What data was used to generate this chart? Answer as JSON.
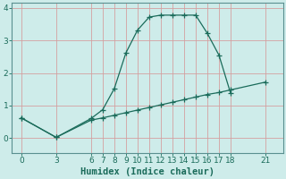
{
  "xlabel": "Humidex (Indice chaleur)",
  "bg_color": "#ceecea",
  "line_color": "#1a6b5a",
  "grid_color": "#d4a0a0",
  "xticks": [
    0,
    3,
    6,
    7,
    8,
    9,
    10,
    11,
    12,
    13,
    14,
    15,
    16,
    17,
    18,
    21
  ],
  "yticks": [
    0,
    1,
    2,
    3,
    4
  ],
  "ylim": [
    -0.45,
    4.15
  ],
  "xlim": [
    -0.8,
    22.5
  ],
  "curve_x": [
    0,
    3,
    6,
    7,
    8,
    9,
    10,
    11,
    12,
    13,
    14,
    15,
    16,
    17,
    18
  ],
  "curve_y": [
    0.62,
    0.02,
    0.6,
    0.87,
    1.52,
    2.62,
    3.32,
    3.72,
    3.78,
    3.78,
    3.78,
    3.78,
    3.22,
    2.55,
    1.38
  ],
  "linear_x": [
    0,
    3,
    6,
    7,
    8,
    9,
    10,
    11,
    12,
    13,
    14,
    15,
    16,
    17,
    18,
    21
  ],
  "linear_y": [
    0.62,
    0.02,
    0.55,
    0.62,
    0.7,
    0.78,
    0.86,
    0.94,
    1.02,
    1.1,
    1.18,
    1.26,
    1.34,
    1.4,
    1.48,
    1.72
  ],
  "markersize": 4,
  "linewidth": 0.9,
  "xlabel_fontsize": 7.5,
  "tick_fontsize": 6.5
}
